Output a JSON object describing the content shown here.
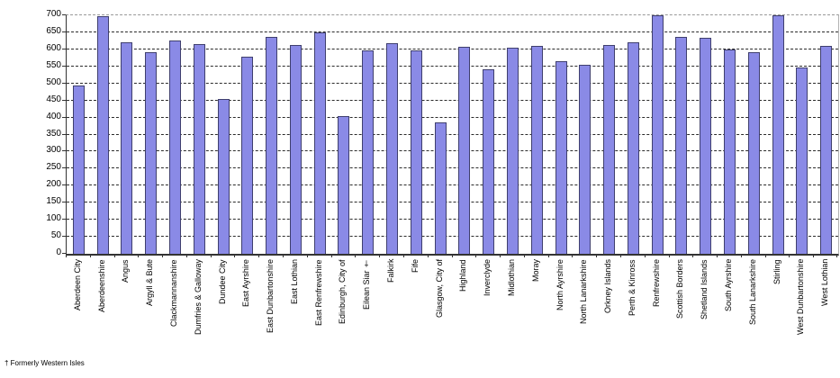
{
  "chart_data": {
    "type": "bar",
    "title": "",
    "xlabel": "",
    "ylabel": "",
    "categories": [
      "Aberdeen City",
      "Aberdeenshire",
      "Angus",
      "Argyll & Bute",
      "Clackmannanshire",
      "Dumfries & Galloway",
      "Dundee City",
      "East Ayrshire",
      "East Dunbartonshire",
      "East Lothian",
      "East Renfrewshire",
      "Edinburgh, City of",
      "Eilean Siar †",
      "Falkirk",
      "Fife",
      "Glasgow, City of",
      "Highland",
      "Inverclyde",
      "Midlothian",
      "Moray",
      "North Ayrshire",
      "North Lanarkshire",
      "Orkney Islands",
      "Perth & Kinross",
      "Renfrewshire",
      "Scottish Borders",
      "Shetland Islands",
      "South Ayrshire",
      "South Lanarkshire",
      "Stirling",
      "West Dunbartonshire",
      "West Lothian"
    ],
    "values": [
      493,
      697,
      622,
      592,
      626,
      616,
      455,
      578,
      636,
      612,
      649,
      403,
      598,
      618,
      597,
      385,
      608,
      541,
      605,
      610,
      565,
      556,
      612,
      621,
      700,
      636,
      633,
      599,
      591,
      700,
      548,
      610
    ],
    "ylim": [
      0,
      700
    ],
    "ytick_step": 50,
    "grid": "horizontal-dashed",
    "legend": "none",
    "bar_color": "#8a8ae6",
    "bar_border_color": "#3f3f6e"
  },
  "footnote": "† Formerly Western Isles"
}
